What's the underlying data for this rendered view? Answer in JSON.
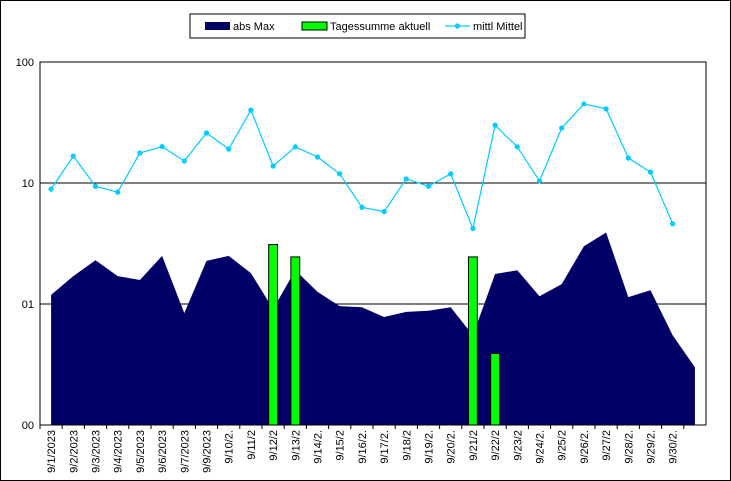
{
  "chart_data": {
    "type": "combo",
    "categories": [
      "9/1/2023",
      "9/2/2023",
      "9/3/2023",
      "9/4/2023",
      "9/5/2023",
      "9/6/2023",
      "9/7/2023",
      "9/9/2023",
      "9/10/2.",
      "9/11/2",
      "9/12/2",
      "9/13/2",
      "9/14/2.",
      "9/15/2",
      "9/16/2.",
      "9/17/2.",
      "9/18/2",
      "9/19/2.",
      "9/20/2.",
      "9/21/2",
      "9/22/2",
      "9/23/2",
      "9/24/2.",
      "9/25/2",
      "9/26/2.",
      "9/27/2",
      "9/28/2.",
      "9/29/2.",
      "9/30/2.",
      null
    ],
    "series": [
      {
        "name": "abs Max",
        "kind": "area",
        "color": "#000066",
        "values": [
          1.19,
          1.7,
          2.3,
          1.7,
          1.58,
          2.5,
          0.84,
          2.27,
          2.5,
          1.8,
          0.91,
          1.9,
          1.26,
          0.96,
          0.94,
          0.78,
          0.86,
          0.88,
          0.94,
          0.55,
          1.77,
          1.9,
          1.16,
          1.46,
          3.0,
          3.9,
          1.14,
          1.3,
          0.55,
          0.3
        ]
      },
      {
        "name": "Tagessumme aktuell",
        "kind": "bar",
        "color": "#00ff00",
        "values": [
          null,
          null,
          null,
          null,
          null,
          null,
          null,
          null,
          null,
          null,
          3.1,
          2.45,
          null,
          null,
          null,
          null,
          null,
          null,
          null,
          2.45,
          0.39,
          null,
          null,
          null,
          null,
          null,
          null,
          null,
          null,
          null
        ]
      },
      {
        "name": "mittl Mittel",
        "kind": "line",
        "color": "#00ccff",
        "values": [
          8.9,
          16.7,
          9.4,
          8.4,
          17.7,
          20,
          15.2,
          25.9,
          19.1,
          40,
          13.8,
          19.9,
          16.4,
          11.9,
          6.3,
          5.8,
          10.8,
          9.4,
          11.9,
          4.2,
          30,
          19.9,
          10.4,
          28.5,
          45,
          41,
          16.1,
          12.3,
          4.6,
          null
        ]
      }
    ],
    "ylim": [
      0.1,
      100
    ],
    "log_scale": true,
    "yticks": [
      100,
      10,
      {
        "value": 1,
        "label": "01"
      },
      {
        "value": 0.1,
        "label": "00"
      }
    ],
    "grid": true,
    "legend": "top"
  }
}
